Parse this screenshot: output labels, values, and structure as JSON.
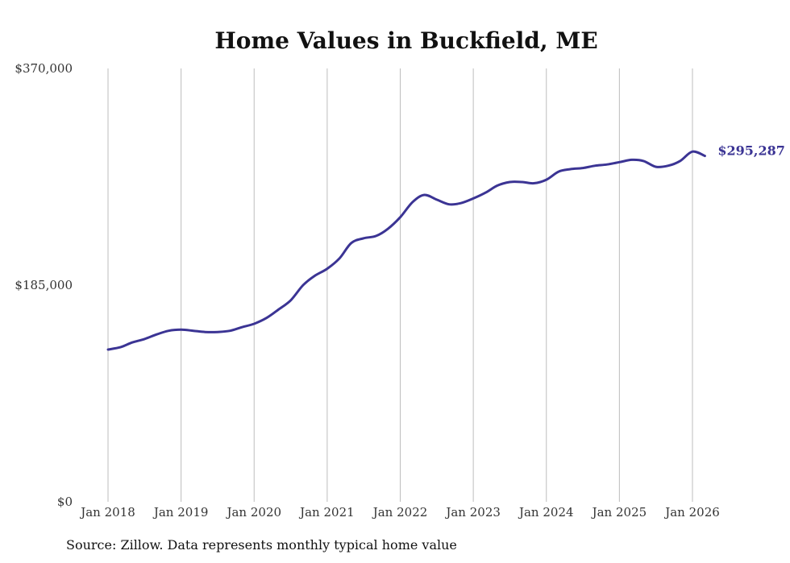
{
  "chart_data": {
    "type": "line",
    "title": "Home Values in Buckfield, ME",
    "xlabel": "",
    "ylabel": "",
    "ylim": [
      0,
      370000
    ],
    "y_ticks": [
      {
        "value": 0,
        "label": "$0"
      },
      {
        "value": 185000,
        "label": "$185,000"
      },
      {
        "value": 370000,
        "label": "$370,000"
      }
    ],
    "x_ticks": [
      {
        "value": 2018,
        "label": "Jan 2018"
      },
      {
        "value": 2019,
        "label": "Jan 2019"
      },
      {
        "value": 2020,
        "label": "Jan 2020"
      },
      {
        "value": 2021,
        "label": "Jan 2021"
      },
      {
        "value": 2022,
        "label": "Jan 2022"
      },
      {
        "value": 2023,
        "label": "Jan 2023"
      },
      {
        "value": 2024,
        "label": "Jan 2024"
      },
      {
        "value": 2025,
        "label": "Jan 2025"
      },
      {
        "value": 2026,
        "label": "Jan 2026"
      }
    ],
    "grid": "vertical",
    "series": [
      {
        "name": "Typical home value",
        "color": "#3b3494",
        "x": [
          2018.0,
          2018.17,
          2018.33,
          2018.5,
          2018.67,
          2018.83,
          2019.0,
          2019.17,
          2019.33,
          2019.5,
          2019.67,
          2019.83,
          2020.0,
          2020.17,
          2020.33,
          2020.5,
          2020.67,
          2020.83,
          2021.0,
          2021.17,
          2021.33,
          2021.5,
          2021.67,
          2021.83,
          2022.0,
          2022.17,
          2022.33,
          2022.5,
          2022.67,
          2022.83,
          2023.0,
          2023.17,
          2023.33,
          2023.5,
          2023.67,
          2023.83,
          2024.0,
          2024.17,
          2024.33,
          2024.5,
          2024.67,
          2024.83,
          2025.0,
          2025.17,
          2025.33,
          2025.5,
          2025.67,
          2025.83,
          2026.0,
          2026.17
        ],
        "values": [
          130000,
          132000,
          136000,
          139000,
          143000,
          146000,
          147000,
          146000,
          145000,
          145000,
          146000,
          149000,
          152000,
          157000,
          164000,
          172000,
          185000,
          193000,
          199000,
          208000,
          221000,
          225000,
          227000,
          233000,
          243000,
          256000,
          262000,
          258000,
          254000,
          255000,
          259000,
          264000,
          270000,
          273000,
          273000,
          272000,
          275000,
          282000,
          284000,
          285000,
          287000,
          288000,
          290000,
          292000,
          291000,
          286000,
          287000,
          291000,
          299000,
          295287
        ]
      }
    ],
    "end_label": "$295,287"
  },
  "source_note": "Source: Zillow. Data represents monthly typical home value"
}
